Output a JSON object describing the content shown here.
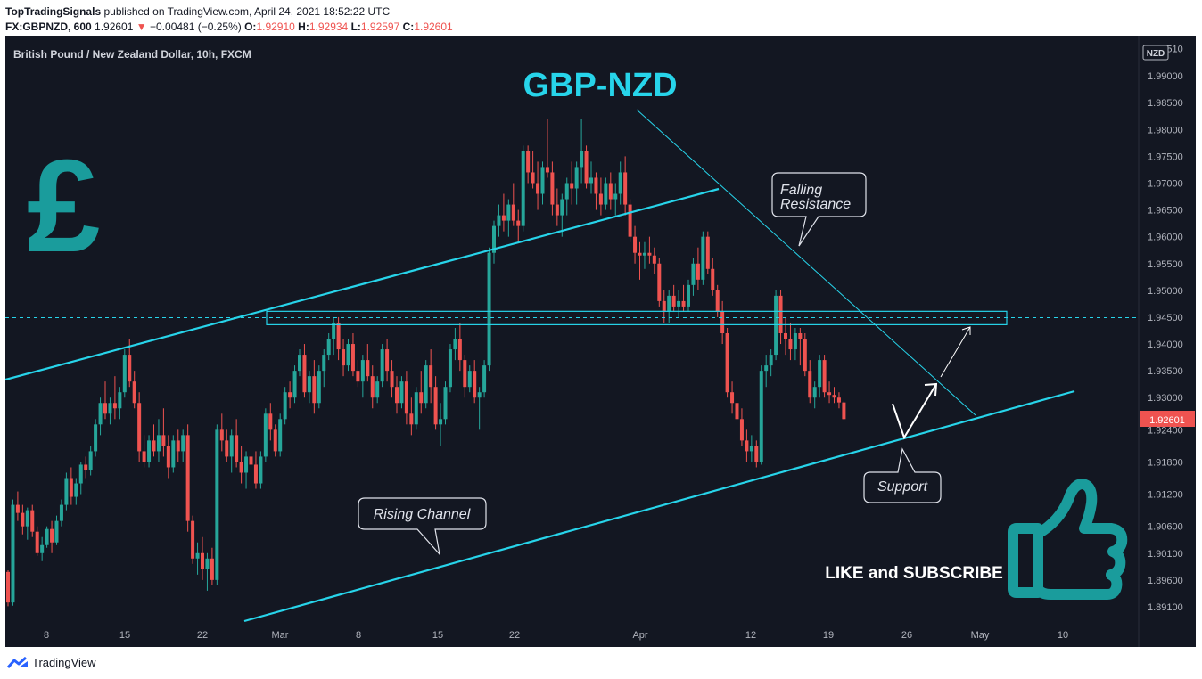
{
  "header": {
    "publisher": "TopTradingSignals",
    "published_text": "published on TradingView.com, April 24, 2021 18:52:22 UTC",
    "symbol": "FX:GBPNZD, 600",
    "last": "1.92601",
    "change_arrow": "▼",
    "change": "−0.00481 (−0.25%)",
    "o_label": "O:",
    "o": "1.92910",
    "h_label": "H:",
    "h": "1.92934",
    "l_label": "L:",
    "l": "1.92597",
    "c_label": "C:",
    "c": "1.92601"
  },
  "footer": {
    "brand": "TradingView"
  },
  "colors": {
    "background": "#131722",
    "up": "#26a69a",
    "down": "#ef5350",
    "line": "#27d4ea",
    "title": "#27d4ea",
    "pound": "#1a9c9c"
  },
  "chart_data": {
    "type": "candlestick",
    "instrument": "British Pound / New Zealand Dollar, 10h, FXCM",
    "title": "GBP-NZD",
    "currency_badge": "NZD",
    "last_price_label": "1.92601",
    "y_ticks": [
      "1.99510",
      "1.99000",
      "1.98500",
      "1.98000",
      "1.97500",
      "1.97000",
      "1.96500",
      "1.96000",
      "1.95500",
      "1.95000",
      "1.94500",
      "1.94000",
      "1.93500",
      "1.93000",
      "1.92400",
      "1.91800",
      "1.91200",
      "1.90600",
      "1.90100",
      "1.89600",
      "1.89100"
    ],
    "x_ticks": [
      "8",
      "15",
      "22",
      "Mar",
      "8",
      "15",
      "22",
      "Apr",
      "12",
      "19",
      "26",
      "May",
      "10"
    ],
    "ylim": [
      1.8885,
      1.996
    ],
    "annotations": {
      "falling_resistance": "Falling\nResistance",
      "rising_channel": "Rising Channel",
      "support": "Support",
      "cta": "LIKE and SUBSCRIBE"
    },
    "horizontal_zone": [
      1.9436,
      1.9461
    ],
    "candles": [
      [
        1.8975,
        1.8978,
        1.8911,
        1.8918
      ],
      [
        1.8918,
        1.911,
        1.8912,
        1.91
      ],
      [
        1.91,
        1.9125,
        1.907,
        1.9085
      ],
      [
        1.9085,
        1.91,
        1.9045,
        1.906
      ],
      [
        1.906,
        1.9095,
        1.9035,
        1.909
      ],
      [
        1.909,
        1.91,
        1.904,
        1.905
      ],
      [
        1.905,
        1.906,
        1.9005,
        1.901
      ],
      [
        1.901,
        1.904,
        1.8995,
        1.9025
      ],
      [
        1.9025,
        1.906,
        1.902,
        1.9055
      ],
      [
        1.9055,
        1.907,
        1.901,
        1.903
      ],
      [
        1.903,
        1.908,
        1.9025,
        1.907
      ],
      [
        1.907,
        1.911,
        1.906,
        1.91
      ],
      [
        1.91,
        1.916,
        1.909,
        1.915
      ],
      [
        1.915,
        1.917,
        1.91,
        1.9115
      ],
      [
        1.9115,
        1.915,
        1.91,
        1.914
      ],
      [
        1.914,
        1.918,
        1.912,
        1.9175
      ],
      [
        1.9175,
        1.919,
        1.915,
        1.9165
      ],
      [
        1.9165,
        1.921,
        1.9155,
        1.92
      ],
      [
        1.92,
        1.926,
        1.919,
        1.925
      ],
      [
        1.925,
        1.93,
        1.923,
        1.929
      ],
      [
        1.929,
        1.933,
        1.926,
        1.927
      ],
      [
        1.927,
        1.93,
        1.925,
        1.929
      ],
      [
        1.929,
        1.934,
        1.926,
        1.928
      ],
      [
        1.928,
        1.932,
        1.926,
        1.931
      ],
      [
        1.931,
        1.939,
        1.93,
        1.938
      ],
      [
        1.938,
        1.941,
        1.932,
        1.933
      ],
      [
        1.933,
        1.935,
        1.928,
        1.929
      ],
      [
        1.929,
        1.931,
        1.918,
        1.92
      ],
      [
        1.92,
        1.923,
        1.917,
        1.918
      ],
      [
        1.918,
        1.923,
        1.917,
        1.922
      ],
      [
        1.922,
        1.925,
        1.919,
        1.92
      ],
      [
        1.92,
        1.926,
        1.918,
        1.923
      ],
      [
        1.923,
        1.928,
        1.919,
        1.921
      ],
      [
        1.921,
        1.923,
        1.915,
        1.917
      ],
      [
        1.917,
        1.923,
        1.916,
        1.922
      ],
      [
        1.922,
        1.924,
        1.918,
        1.92
      ],
      [
        1.92,
        1.924,
        1.918,
        1.923
      ],
      [
        1.923,
        1.925,
        1.905,
        1.907
      ],
      [
        1.907,
        1.908,
        1.899,
        1.9
      ],
      [
        1.9,
        1.903,
        1.897,
        1.901
      ],
      [
        1.901,
        1.904,
        1.896,
        1.898
      ],
      [
        1.898,
        1.901,
        1.894,
        1.9
      ],
      [
        1.9,
        1.902,
        1.895,
        1.896
      ],
      [
        1.896,
        1.925,
        1.895,
        1.924
      ],
      [
        1.924,
        1.927,
        1.92,
        1.922
      ],
      [
        1.922,
        1.924,
        1.918,
        1.919
      ],
      [
        1.919,
        1.924,
        1.916,
        1.923
      ],
      [
        1.923,
        1.926,
        1.917,
        1.918
      ],
      [
        1.918,
        1.921,
        1.914,
        1.916
      ],
      [
        1.916,
        1.92,
        1.913,
        1.919
      ],
      [
        1.919,
        1.922,
        1.916,
        1.9175
      ],
      [
        1.9175,
        1.92,
        1.913,
        1.914
      ],
      [
        1.914,
        1.92,
        1.913,
        1.919
      ],
      [
        1.919,
        1.928,
        1.918,
        1.927
      ],
      [
        1.927,
        1.929,
        1.922,
        1.924
      ],
      [
        1.924,
        1.925,
        1.919,
        1.92
      ],
      [
        1.92,
        1.927,
        1.919,
        1.926
      ],
      [
        1.926,
        1.932,
        1.925,
        1.931
      ],
      [
        1.931,
        1.933,
        1.928,
        1.93
      ],
      [
        1.93,
        1.936,
        1.929,
        1.935
      ],
      [
        1.935,
        1.939,
        1.934,
        1.938
      ],
      [
        1.938,
        1.94,
        1.93,
        1.931
      ],
      [
        1.931,
        1.935,
        1.929,
        1.934
      ],
      [
        1.934,
        1.937,
        1.927,
        1.929
      ],
      [
        1.929,
        1.936,
        1.928,
        1.935
      ],
      [
        1.935,
        1.939,
        1.932,
        1.938
      ],
      [
        1.938,
        1.942,
        1.937,
        1.941
      ],
      [
        1.941,
        1.945,
        1.938,
        1.944
      ],
      [
        1.944,
        1.945,
        1.937,
        1.939
      ],
      [
        1.939,
        1.941,
        1.934,
        1.936
      ],
      [
        1.936,
        1.941,
        1.935,
        1.94
      ],
      [
        1.94,
        1.942,
        1.934,
        1.935
      ],
      [
        1.935,
        1.937,
        1.932,
        1.933
      ],
      [
        1.933,
        1.938,
        1.93,
        1.937
      ],
      [
        1.937,
        1.94,
        1.933,
        1.934
      ],
      [
        1.934,
        1.936,
        1.928,
        1.93
      ],
      [
        1.93,
        1.934,
        1.929,
        1.933
      ],
      [
        1.933,
        1.94,
        1.932,
        1.939
      ],
      [
        1.939,
        1.941,
        1.933,
        1.935
      ],
      [
        1.935,
        1.937,
        1.93,
        1.932
      ],
      [
        1.932,
        1.934,
        1.927,
        1.929
      ],
      [
        1.929,
        1.934,
        1.928,
        1.933
      ],
      [
        1.933,
        1.935,
        1.925,
        1.927
      ],
      [
        1.927,
        1.93,
        1.923,
        1.925
      ],
      [
        1.925,
        1.932,
        1.924,
        1.931
      ],
      [
        1.931,
        1.935,
        1.927,
        1.929
      ],
      [
        1.929,
        1.937,
        1.928,
        1.936
      ],
      [
        1.936,
        1.939,
        1.929,
        1.932
      ],
      [
        1.932,
        1.934,
        1.924,
        1.925
      ],
      [
        1.925,
        1.929,
        1.921,
        1.926
      ],
      [
        1.926,
        1.933,
        1.925,
        1.932
      ],
      [
        1.932,
        1.94,
        1.931,
        1.939
      ],
      [
        1.939,
        1.943,
        1.937,
        1.941
      ],
      [
        1.941,
        1.944,
        1.935,
        1.937
      ],
      [
        1.937,
        1.938,
        1.93,
        1.932
      ],
      [
        1.932,
        1.936,
        1.931,
        1.935
      ],
      [
        1.935,
        1.937,
        1.929,
        1.93
      ],
      [
        1.93,
        1.932,
        1.924,
        1.931
      ],
      [
        1.931,
        1.937,
        1.93,
        1.936
      ],
      [
        1.936,
        1.958,
        1.935,
        1.957
      ],
      [
        1.957,
        1.963,
        1.955,
        1.962
      ],
      [
        1.962,
        1.966,
        1.96,
        1.964
      ],
      [
        1.964,
        1.968,
        1.961,
        1.963
      ],
      [
        1.963,
        1.967,
        1.96,
        1.966
      ],
      [
        1.966,
        1.97,
        1.962,
        1.963
      ],
      [
        1.963,
        1.965,
        1.959,
        1.962
      ],
      [
        1.962,
        1.977,
        1.961,
        1.976
      ],
      [
        1.976,
        1.977,
        1.97,
        1.972
      ],
      [
        1.972,
        1.976,
        1.969,
        1.97
      ],
      [
        1.97,
        1.974,
        1.965,
        1.968
      ],
      [
        1.968,
        1.974,
        1.966,
        1.973
      ],
      [
        1.973,
        1.982,
        1.971,
        1.972
      ],
      [
        1.972,
        1.974,
        1.964,
        1.966
      ],
      [
        1.966,
        1.969,
        1.962,
        1.964
      ],
      [
        1.964,
        1.968,
        1.96,
        1.967
      ],
      [
        1.967,
        1.971,
        1.964,
        1.97
      ],
      [
        1.97,
        1.974,
        1.966,
        1.969
      ],
      [
        1.969,
        1.974,
        1.966,
        1.973
      ],
      [
        1.973,
        1.982,
        1.97,
        1.976
      ],
      [
        1.976,
        1.977,
        1.969,
        1.97
      ],
      [
        1.97,
        1.974,
        1.968,
        1.971
      ],
      [
        1.971,
        1.972,
        1.965,
        1.968
      ],
      [
        1.968,
        1.971,
        1.964,
        1.966
      ],
      [
        1.966,
        1.971,
        1.965,
        1.97
      ],
      [
        1.97,
        1.972,
        1.965,
        1.967
      ],
      [
        1.967,
        1.97,
        1.964,
        1.968
      ],
      [
        1.968,
        1.974,
        1.966,
        1.972
      ],
      [
        1.972,
        1.975,
        1.964,
        1.966
      ],
      [
        1.966,
        1.967,
        1.959,
        1.96
      ],
      [
        1.96,
        1.962,
        1.955,
        1.957
      ],
      [
        1.957,
        1.959,
        1.952,
        1.9565
      ],
      [
        1.9565,
        1.959,
        1.954,
        1.957
      ],
      [
        1.957,
        1.96,
        1.955,
        1.9565
      ],
      [
        1.9565,
        1.958,
        1.953,
        1.955
      ],
      [
        1.955,
        1.956,
        1.947,
        1.948
      ],
      [
        1.948,
        1.95,
        1.944,
        1.946
      ],
      [
        1.946,
        1.95,
        1.944,
        1.949
      ],
      [
        1.949,
        1.951,
        1.946,
        1.947
      ],
      [
        1.947,
        1.95,
        1.945,
        1.948
      ],
      [
        1.948,
        1.951,
        1.946,
        1.947
      ],
      [
        1.947,
        1.952,
        1.946,
        1.951
      ],
      [
        1.951,
        1.956,
        1.949,
        1.955
      ],
      [
        1.955,
        1.958,
        1.95,
        1.952
      ],
      [
        1.952,
        1.961,
        1.951,
        1.96
      ],
      [
        1.96,
        1.961,
        1.953,
        1.954
      ],
      [
        1.954,
        1.956,
        1.949,
        1.95
      ],
      [
        1.95,
        1.951,
        1.945,
        1.946
      ],
      [
        1.946,
        1.948,
        1.94,
        1.942
      ],
      [
        1.942,
        1.943,
        1.93,
        1.931
      ],
      [
        1.931,
        1.933,
        1.927,
        1.929
      ],
      [
        1.929,
        1.93,
        1.924,
        1.926
      ],
      [
        1.926,
        1.928,
        1.921,
        1.922
      ],
      [
        1.922,
        1.924,
        1.918,
        1.92
      ],
      [
        1.92,
        1.923,
        1.918,
        1.921
      ],
      [
        1.921,
        1.922,
        1.917,
        1.918
      ],
      [
        1.918,
        1.936,
        1.9175,
        1.935
      ],
      [
        1.935,
        1.938,
        1.932,
        1.936
      ],
      [
        1.936,
        1.939,
        1.934,
        1.938
      ],
      [
        1.938,
        1.95,
        1.937,
        1.949
      ],
      [
        1.949,
        1.95,
        1.94,
        1.942
      ],
      [
        1.942,
        1.945,
        1.938,
        1.941
      ],
      [
        1.941,
        1.944,
        1.937,
        1.939
      ],
      [
        1.939,
        1.943,
        1.937,
        1.942
      ],
      [
        1.942,
        1.943,
        1.936,
        1.941
      ],
      [
        1.941,
        1.942,
        1.934,
        1.935
      ],
      [
        1.935,
        1.937,
        1.929,
        1.93
      ],
      [
        1.93,
        1.933,
        1.928,
        1.932
      ],
      [
        1.932,
        1.938,
        1.93,
        1.937
      ],
      [
        1.937,
        1.938,
        1.93,
        1.931
      ],
      [
        1.931,
        1.933,
        1.929,
        1.9305
      ],
      [
        1.9305,
        1.932,
        1.929,
        1.93
      ],
      [
        1.93,
        1.931,
        1.928,
        1.9291
      ],
      [
        1.9291,
        1.9293,
        1.9259,
        1.926
      ]
    ]
  }
}
